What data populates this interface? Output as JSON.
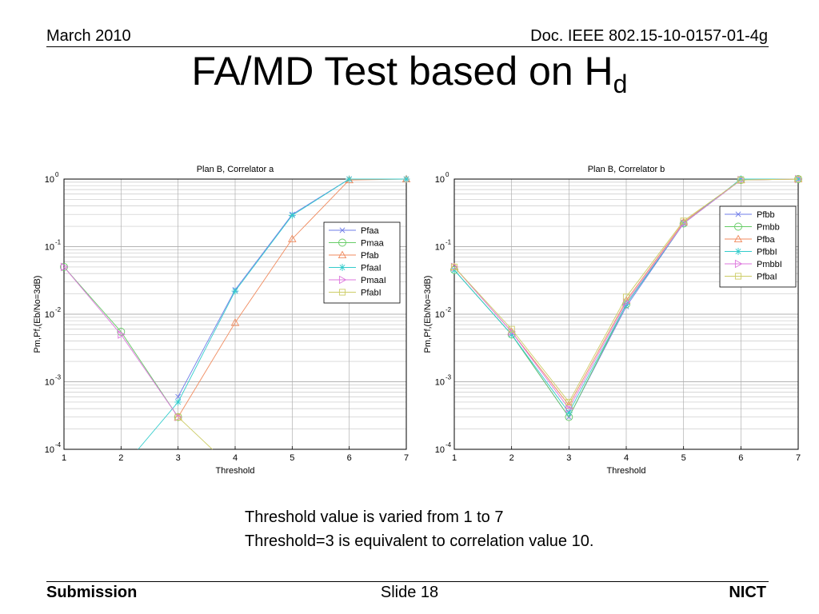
{
  "header": {
    "date": "March 2010",
    "doc": "Doc. IEEE 802.15-10-0157-01-4g"
  },
  "title": {
    "main": "FA/MD Test based on H",
    "subscript": "d"
  },
  "caption": {
    "line1": "Threshold value is varied from 1 to 7",
    "line2": "Threshold=3 is equivalent to correlation value 10."
  },
  "footer": {
    "left": "Submission",
    "center": "Slide 18",
    "right": "NICT"
  },
  "chart_data": [
    {
      "type": "line",
      "title": "Plan B, Correlator a",
      "xlabel": "Threshold",
      "ylabel": "Pm,Pf,(Eb/No=3dB)",
      "xlim": [
        1,
        7
      ],
      "ylim": [
        0.0001,
        1
      ],
      "yscale": "log",
      "grid": true,
      "legend_position": "right",
      "x_ticks": [
        "1",
        "2",
        "3",
        "4",
        "5",
        "6",
        "7"
      ],
      "y_ticks": [
        {
          "base": "10",
          "exp": "0"
        },
        {
          "base": "10",
          "exp": "-1"
        },
        {
          "base": "10",
          "exp": "-2"
        },
        {
          "base": "10",
          "exp": "-3"
        },
        {
          "base": "10",
          "exp": "-4"
        }
      ],
      "series": [
        {
          "name": "Pfaa",
          "marker": "x",
          "color": "#6f7ce8",
          "x": [
            3,
            4,
            5,
            6,
            7
          ],
          "y": [
            0.0006,
            0.023,
            0.3,
            1,
            1
          ]
        },
        {
          "name": "Pmaa",
          "marker": "circle",
          "color": "#66cc66",
          "x": [
            1,
            2,
            3
          ],
          "y": [
            0.05,
            0.0055,
            0.0003
          ]
        },
        {
          "name": "Pfab",
          "marker": "triangle-up",
          "color": "#f08a5d",
          "x": [
            3,
            4,
            5,
            6,
            7
          ],
          "y": [
            0.0003,
            0.0075,
            0.13,
            0.97,
            1
          ]
        },
        {
          "name": "PfaaI",
          "marker": "star",
          "color": "#33cccc",
          "x": [
            2.3,
            3,
            4,
            5,
            6,
            7
          ],
          "y": [
            0.0001,
            0.0005,
            0.022,
            0.29,
            1,
            1
          ]
        },
        {
          "name": "PmaaI",
          "marker": "triangle-right",
          "color": "#dd77dd",
          "x": [
            1,
            2,
            3
          ],
          "y": [
            0.05,
            0.005,
            0.0003
          ]
        },
        {
          "name": "PfabI",
          "marker": "square",
          "color": "#cccc66",
          "x": [
            3,
            3.6
          ],
          "y": [
            0.0003,
            0.0001
          ]
        }
      ]
    },
    {
      "type": "line",
      "title": "Plan B, Correlator b",
      "xlabel": "Threshold",
      "ylabel": "Pm,Pf,(Eb/No=3dB)",
      "xlim": [
        1,
        7
      ],
      "ylim": [
        0.0001,
        1
      ],
      "yscale": "log",
      "grid": true,
      "legend_position": "top-right",
      "x_ticks": [
        "1",
        "2",
        "3",
        "4",
        "5",
        "6",
        "7"
      ],
      "y_ticks": [
        {
          "base": "10",
          "exp": "0"
        },
        {
          "base": "10",
          "exp": "-1"
        },
        {
          "base": "10",
          "exp": "-2"
        },
        {
          "base": "10",
          "exp": "-3"
        },
        {
          "base": "10",
          "exp": "-4"
        }
      ],
      "series": [
        {
          "name": "Pfbb",
          "marker": "x",
          "color": "#6f7ce8",
          "x": [
            1,
            2,
            3,
            4,
            5,
            6,
            7
          ],
          "y": [
            0.045,
            0.005,
            0.0003,
            0.013,
            0.22,
            1,
            1
          ]
        },
        {
          "name": "Pmbb",
          "marker": "circle",
          "color": "#66cc66",
          "x": [
            1,
            2,
            3,
            4,
            5,
            6,
            7
          ],
          "y": [
            0.045,
            0.005,
            0.0003,
            0.014,
            0.22,
            0.97,
            1
          ]
        },
        {
          "name": "Pfba",
          "marker": "triangle-up",
          "color": "#f08a5d",
          "x": [
            1,
            2,
            3,
            4,
            5,
            6,
            7
          ],
          "y": [
            0.05,
            0.0055,
            0.00045,
            0.016,
            0.23,
            0.97,
            1
          ]
        },
        {
          "name": "PfbbI",
          "marker": "star",
          "color": "#33cccc",
          "x": [
            1,
            2,
            3,
            4,
            5,
            6,
            7
          ],
          "y": [
            0.045,
            0.005,
            0.00035,
            0.014,
            0.22,
            1,
            1
          ]
        },
        {
          "name": "PmbbI",
          "marker": "triangle-right",
          "color": "#dd77dd",
          "x": [
            1,
            2,
            3,
            4,
            5,
            6,
            7
          ],
          "y": [
            0.05,
            0.0055,
            0.0004,
            0.015,
            0.22,
            0.97,
            1
          ]
        },
        {
          "name": "PfbaI",
          "marker": "square",
          "color": "#cccc66",
          "x": [
            1,
            2,
            3,
            4,
            5,
            6,
            7
          ],
          "y": [
            0.05,
            0.006,
            0.0005,
            0.018,
            0.24,
            0.97,
            1
          ]
        }
      ]
    }
  ]
}
